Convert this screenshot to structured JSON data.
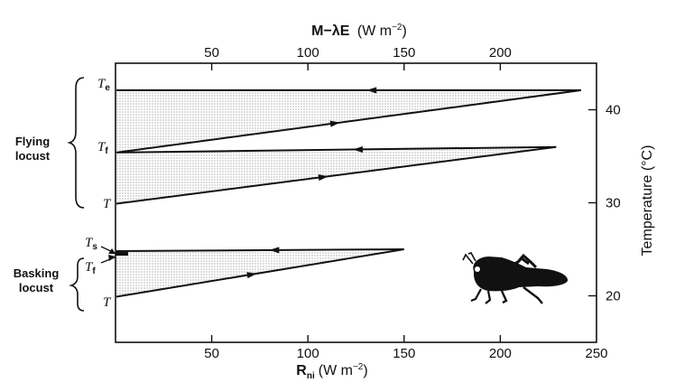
{
  "chart_data": {
    "type": "diagram",
    "axes": {
      "bottom": {
        "title_main": "R",
        "title_sub": "ni",
        "title_units": "(W m",
        "title_exp": "−2",
        "title_close": ")",
        "ticks": [
          "50",
          "100",
          "150",
          "200",
          "250"
        ],
        "range": [
          0,
          250
        ]
      },
      "top": {
        "title_main": "M−λE",
        "title_units": "(W m",
        "title_exp": "−2",
        "title_close": ")",
        "ticks": [
          "50",
          "100",
          "150",
          "200"
        ],
        "range": [
          0,
          250
        ]
      },
      "right": {
        "title": "Temperature (°C)",
        "ticks": [
          "20",
          "30",
          "40"
        ],
        "range": [
          15,
          45
        ]
      }
    },
    "groups": {
      "flying": {
        "line1": "Flying",
        "line2": "locust"
      },
      "basking": {
        "line1": "Basking",
        "line2": "locust"
      }
    },
    "temperature_labels": [
      {
        "main": "T",
        "sub": "e"
      },
      {
        "main": "T",
        "sub": "f"
      },
      {
        "main": "T",
        "sub": ""
      },
      {
        "main": "T",
        "sub": "s"
      },
      {
        "main": "T",
        "sub": "f"
      },
      {
        "main": "T",
        "sub": ""
      }
    ],
    "wedges": [
      {
        "top_temp": 42.1,
        "bottom_temp": 35.4,
        "tip_flux": 242,
        "tip_temp": 42.1
      },
      {
        "top_temp": 35.4,
        "bottom_temp": 29.9,
        "tip_flux": 229,
        "tip_temp": 36.0
      },
      {
        "top_temp": 24.8,
        "bottom_temp": 19.9,
        "tip_flux": 150,
        "tip_temp": 25.0
      }
    ]
  }
}
